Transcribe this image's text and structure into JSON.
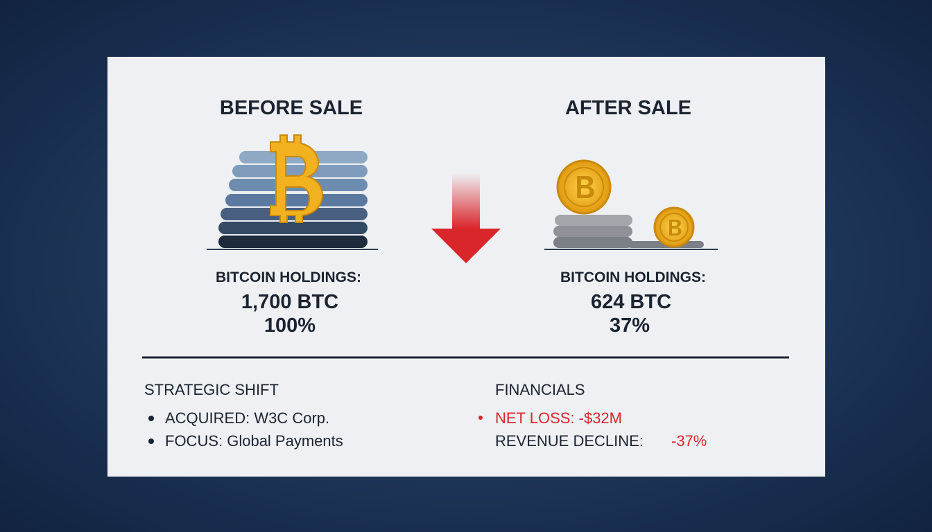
{
  "before": {
    "title": "BEFORE SALE",
    "label": "BITCOIN HOLDINGS:",
    "amount": "1,700 BTC",
    "percent": "100%"
  },
  "after": {
    "title": "AFTER SALE",
    "label": "BITCOIN HOLDINGS:",
    "amount": "624 BTC",
    "percent": "37%"
  },
  "strategic_shift": {
    "title": "STRATEGIC SHIFT",
    "items": [
      "ACQUIRED: W3C Corp.",
      "FOCUS: Global Payments"
    ]
  },
  "financials": {
    "title": "FINANCIALS",
    "net_loss": "NET LOSS: -$32M",
    "revenue_label": "REVENUE DECLINE:",
    "revenue_value": "-37%"
  }
}
